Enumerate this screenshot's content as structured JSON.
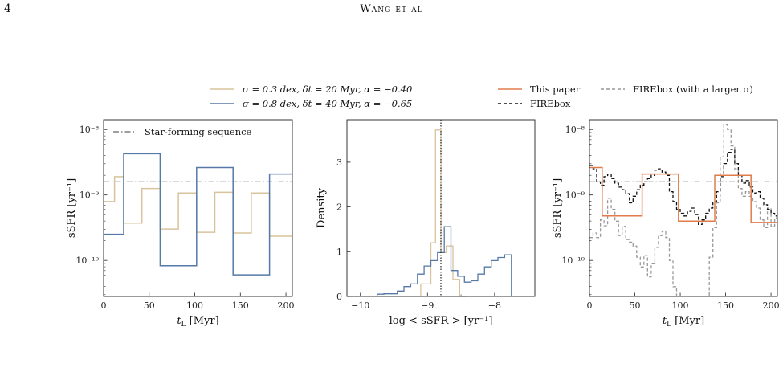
{
  "page_header": {
    "number": "4",
    "running_title": "Wang et al"
  },
  "legend_left": [
    {
      "label": "σ = 0.3 dex, δt = 20 Myr, α = −0.40",
      "color": "#d8c39c"
    },
    {
      "label": "σ = 0.8 dex, δt = 40 Myr, α = −0.65",
      "color": "#5679a8"
    }
  ],
  "legend_right": [
    {
      "label": "This paper",
      "color": "#e07b4a",
      "dash": "solid"
    },
    {
      "label": "FIREbox",
      "color": "#111111",
      "dash": "dashed"
    },
    {
      "label": "FIREbox (with a larger σ)",
      "color": "#999999",
      "dash": "dashed"
    }
  ],
  "colors": {
    "tan": "#d8c39c",
    "blue": "#5679a8",
    "orange": "#e07b4a",
    "black": "#111111",
    "gray": "#999999",
    "sequence": "#666666"
  },
  "chart_data": [
    {
      "type": "line",
      "panel": "left",
      "xlabel": "t_L [Myr]",
      "ylabel": "sSFR [yr⁻¹]",
      "xlim": [
        0,
        207
      ],
      "ylim_log10": [
        -10.55,
        -7.85
      ],
      "y_scale": "log",
      "x_ticks": [
        0,
        50,
        100,
        150,
        200
      ],
      "y_tick_labels": [
        "10⁻⁸",
        "10⁻⁹",
        "10⁻¹⁰"
      ],
      "y_tick_values_log10": [
        -8,
        -9,
        -10
      ],
      "annotations": {
        "sequence_label": "Star-forming sequence",
        "sequence_log10": -8.8
      },
      "series": [
        {
          "legend_index": 0,
          "style": "steps",
          "edges": [
            0,
            12,
            22,
            42,
            62,
            82,
            102,
            122,
            142,
            162,
            182,
            207
          ],
          "log10_values": [
            -9.1,
            -8.72,
            -9.43,
            -8.9,
            -9.52,
            -8.97,
            -9.57,
            -8.96,
            -9.58,
            -8.97,
            -9.63
          ]
        },
        {
          "legend_index": 1,
          "style": "steps",
          "edges": [
            0,
            22,
            62,
            102,
            142,
            182,
            207
          ],
          "log10_values": [
            -9.6,
            -8.37,
            -10.08,
            -8.58,
            -10.22,
            -8.68
          ]
        }
      ]
    },
    {
      "type": "bar",
      "panel": "middle",
      "style": "step-histogram",
      "xlabel": "log < sSFR > [yr⁻¹]",
      "ylabel": "Density",
      "xlim": [
        -10.2,
        -7.4
      ],
      "ylim": [
        0,
        3.95
      ],
      "x_ticks": [
        -10,
        -9,
        -8
      ],
      "x_tick_labels": [
        "−10",
        "−9",
        "−8"
      ],
      "y_ticks": [
        0,
        1,
        2,
        3
      ],
      "vline_x": -8.8,
      "series": [
        {
          "legend_index": 0,
          "edges": [
            -9.1,
            -8.95,
            -8.88,
            -8.8,
            -8.72,
            -8.62,
            -8.52,
            -8.42
          ],
          "values": [
            0.28,
            1.2,
            3.72,
            0.98,
            1.13,
            0.38,
            0
          ]
        },
        {
          "legend_index": 1,
          "edges": [
            -9.75,
            -9.65,
            -9.55,
            -9.45,
            -9.35,
            -9.25,
            -9.15,
            -9.05,
            -8.95,
            -8.85,
            -8.75,
            -8.65,
            -8.55,
            -8.45,
            -8.35,
            -8.25,
            -8.15,
            -8.05,
            -7.95,
            -7.85,
            -7.75
          ],
          "values": [
            0.05,
            0.06,
            0.06,
            0.12,
            0.22,
            0.28,
            0.5,
            0.68,
            0.8,
            0.98,
            1.56,
            0.58,
            0.45,
            0.32,
            0.35,
            0.5,
            0.66,
            0.8,
            0.87,
            0.93
          ]
        }
      ]
    },
    {
      "type": "line",
      "panel": "right",
      "xlabel": "t_L [Myr]",
      "ylabel": "sSFR [yr⁻¹]",
      "xlim": [
        0,
        207
      ],
      "ylim_log10": [
        -10.55,
        -7.85
      ],
      "y_scale": "log",
      "x_ticks": [
        0,
        50,
        100,
        150,
        200
      ],
      "y_tick_labels": [
        "10⁻⁸",
        "10⁻⁹",
        "10⁻¹⁰"
      ],
      "y_tick_values_log10": [
        -8,
        -9,
        -10
      ],
      "sequence_log10": -8.8,
      "series": [
        {
          "legend_index": 2,
          "style": "dashed-steps",
          "edges": [
            0,
            4,
            8,
            12,
            16,
            20,
            24,
            28,
            32,
            36,
            40,
            44,
            48,
            52,
            56,
            60,
            64,
            68,
            72,
            76,
            80,
            84,
            88,
            92,
            96,
            100,
            104,
            108,
            112,
            116,
            120,
            124,
            128,
            132,
            136,
            140,
            144,
            148,
            152,
            156,
            160,
            164,
            168,
            172,
            176,
            180,
            184,
            188,
            192,
            196,
            200,
            204,
            207
          ],
          "log10_values": [
            -9.65,
            -9.58,
            -9.65,
            -9.38,
            -9.47,
            -9.05,
            -9.22,
            -9.4,
            -9.62,
            -9.48,
            -9.68,
            -9.72,
            -9.78,
            -9.95,
            -10.1,
            -9.92,
            -10.25,
            -10.05,
            -9.8,
            -9.62,
            -9.55,
            -9.65,
            -10.0,
            -10.4,
            -10.55,
            -10.55,
            -10.55,
            -10.55,
            -10.55,
            -10.55,
            -10.55,
            -10.55,
            -10.55,
            -9.95,
            -9.5,
            -9.12,
            -8.42,
            -7.92,
            -8.0,
            -8.25,
            -8.6,
            -8.9,
            -9.02,
            -8.95,
            -9.02,
            -9.1,
            -9.2,
            -9.38,
            -9.5,
            -9.2,
            -9.48,
            -9.35
          ]
        },
        {
          "legend_index": 1,
          "style": "dashed-steps",
          "edges": [
            0,
            4,
            8,
            12,
            16,
            20,
            24,
            28,
            32,
            36,
            40,
            44,
            48,
            52,
            56,
            60,
            64,
            68,
            72,
            76,
            80,
            84,
            88,
            92,
            96,
            100,
            104,
            108,
            112,
            116,
            120,
            124,
            128,
            132,
            136,
            140,
            144,
            148,
            152,
            156,
            160,
            164,
            168,
            172,
            176,
            180,
            184,
            188,
            192,
            196,
            200,
            204,
            207
          ],
          "log10_values": [
            -8.55,
            -8.6,
            -8.8,
            -8.85,
            -8.72,
            -8.68,
            -8.75,
            -8.82,
            -8.88,
            -8.92,
            -8.98,
            -9.12,
            -9.02,
            -8.92,
            -8.85,
            -8.8,
            -8.75,
            -8.7,
            -8.62,
            -8.6,
            -8.65,
            -8.7,
            -8.95,
            -9.1,
            -9.22,
            -9.28,
            -9.32,
            -9.25,
            -9.2,
            -9.3,
            -9.45,
            -9.38,
            -9.28,
            -9.2,
            -9.1,
            -8.95,
            -8.72,
            -8.52,
            -8.35,
            -8.3,
            -8.52,
            -8.7,
            -8.82,
            -8.78,
            -8.88,
            -8.97,
            -8.95,
            -9.05,
            -9.15,
            -9.22,
            -9.28,
            -9.32
          ]
        },
        {
          "legend_index": 0,
          "style": "steps",
          "edges": [
            0,
            14,
            18,
            58,
            98,
            138,
            178,
            207
          ],
          "log10_values": [
            -8.58,
            -9.32,
            -9.32,
            -8.68,
            -9.4,
            -8.7,
            -9.42
          ]
        }
      ]
    }
  ]
}
